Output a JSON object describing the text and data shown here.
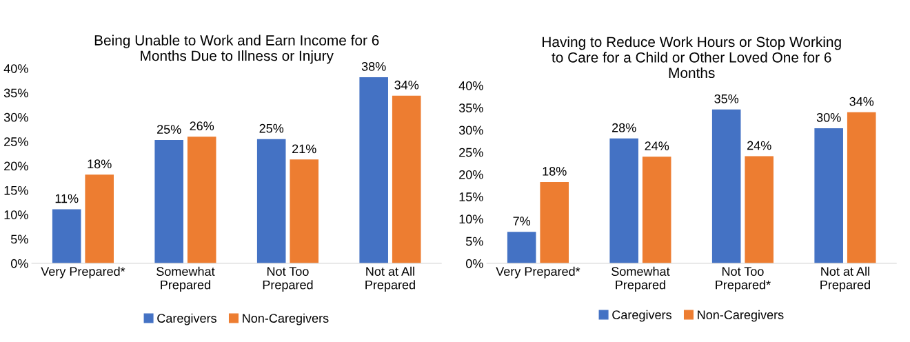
{
  "chart_data": [
    {
      "type": "bar",
      "title": "Being Unable to Work and Earn Income for 6\nMonths Due to Illness or Injury",
      "categories": [
        "Very Prepared*",
        "Somewhat\nPrepared",
        "Not Too\nPrepared",
        "Not at All\nPrepared"
      ],
      "series": [
        {
          "name": "Caregivers",
          "color": "#4472c4",
          "values": [
            11.1,
            25.3,
            25.5,
            38.2
          ],
          "value_labels": [
            "11%",
            "25%",
            "25%",
            "38%"
          ]
        },
        {
          "name": "Non-Caregivers",
          "color": "#ed7d31",
          "values": [
            18.2,
            26.0,
            21.3,
            34.4
          ],
          "value_labels": [
            "18%",
            "26%",
            "21%",
            "34%"
          ]
        }
      ],
      "ylim": [
        0,
        40
      ],
      "yticks": [
        {
          "value": 0,
          "label": "0%"
        },
        {
          "value": 5,
          "label": "5%"
        },
        {
          "value": 10,
          "label": "10%"
        },
        {
          "value": 15,
          "label": "15%"
        },
        {
          "value": 20,
          "label": "20%"
        },
        {
          "value": 25,
          "label": "25%"
        },
        {
          "value": 30,
          "label": "30%"
        },
        {
          "value": 35,
          "label": "35%"
        },
        {
          "value": 40,
          "label": "40%"
        }
      ],
      "grid": false,
      "legend": "bottom"
    },
    {
      "type": "bar",
      "title": "Having to Reduce Work Hours or Stop Working\nto Care for a Child or Other Loved One for 6\nMonths",
      "categories": [
        "Very Prepared*",
        "Somewhat\nPrepared",
        "Not Too\nPrepared*",
        "Not at All\nPrepared"
      ],
      "series": [
        {
          "name": "Caregivers",
          "color": "#4472c4",
          "values": [
            7.1,
            28.1,
            34.6,
            30.4
          ],
          "value_labels": [
            "7%",
            "28%",
            "35%",
            "30%"
          ]
        },
        {
          "name": "Non-Caregivers",
          "color": "#ed7d31",
          "values": [
            18.3,
            24.0,
            24.1,
            34.0
          ],
          "value_labels": [
            "18%",
            "24%",
            "24%",
            "34%"
          ]
        }
      ],
      "ylim": [
        0,
        40
      ],
      "yticks": [
        {
          "value": 0,
          "label": "0%"
        },
        {
          "value": 5,
          "label": "5%"
        },
        {
          "value": 10,
          "label": "10%"
        },
        {
          "value": 15,
          "label": "15%"
        },
        {
          "value": 20,
          "label": "20%"
        },
        {
          "value": 25,
          "label": "25%"
        },
        {
          "value": 30,
          "label": "30%"
        },
        {
          "value": 35,
          "label": "35%"
        },
        {
          "value": 40,
          "label": "40%"
        }
      ],
      "grid": false,
      "legend": "bottom"
    }
  ]
}
